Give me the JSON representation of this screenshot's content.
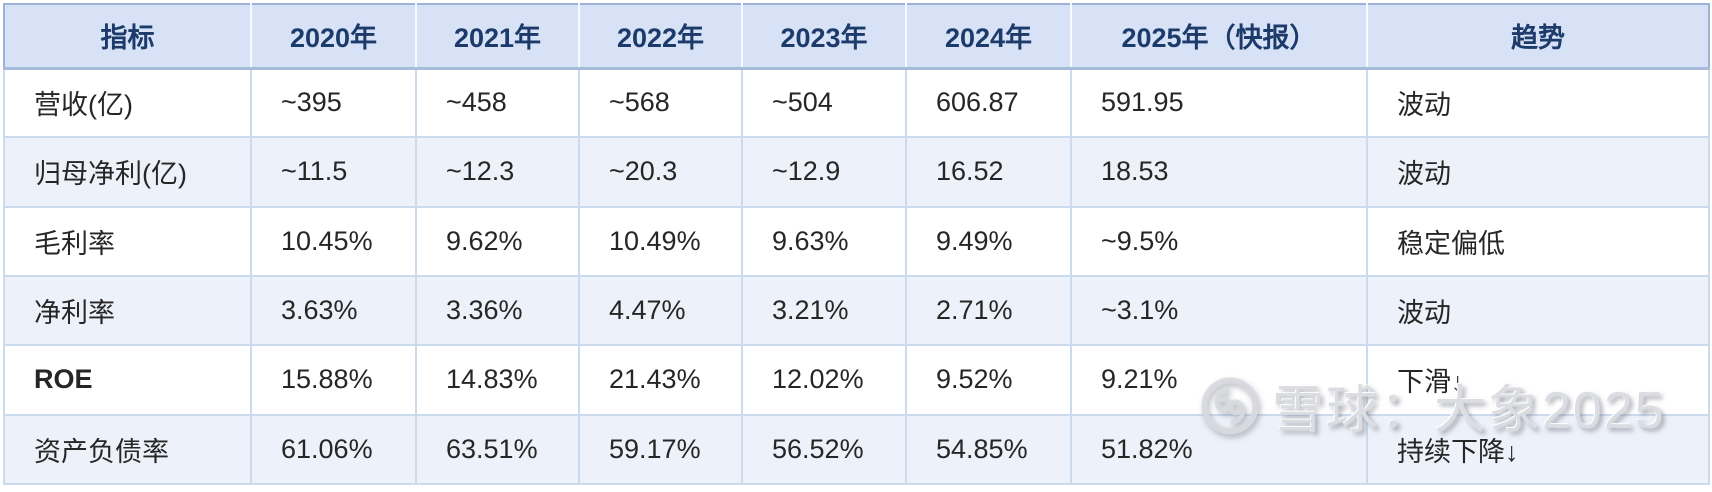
{
  "chart_data": {
    "type": "table",
    "title": "",
    "columns": [
      "指标",
      "2020年",
      "2021年",
      "2022年",
      "2023年",
      "2024年",
      "2025年（快报）",
      "趋势"
    ],
    "rows": [
      {
        "indicator": "营收(亿)",
        "values": [
          "~395",
          "~458",
          "~568",
          "~504",
          "606.87",
          "591.95"
        ],
        "trend": "波动"
      },
      {
        "indicator": "归母净利(亿)",
        "values": [
          "~11.5",
          "~12.3",
          "~20.3",
          "~12.9",
          "16.52",
          "18.53"
        ],
        "trend": "波动"
      },
      {
        "indicator": "毛利率",
        "values": [
          "10.45%",
          "9.62%",
          "10.49%",
          "9.63%",
          "9.49%",
          "~9.5%"
        ],
        "trend": "稳定偏低"
      },
      {
        "indicator": "净利率",
        "values": [
          "3.63%",
          "3.36%",
          "4.47%",
          "3.21%",
          "2.71%",
          "~3.1%"
        ],
        "trend": "波动"
      },
      {
        "indicator": "ROE",
        "bold": true,
        "values": [
          "15.88%",
          "14.83%",
          "21.43%",
          "12.02%",
          "9.52%",
          "9.21%"
        ],
        "trend": "下滑↓"
      },
      {
        "indicator": "资产负债率",
        "values": [
          "61.06%",
          "63.51%",
          "59.17%",
          "56.52%",
          "54.85%",
          "51.82%"
        ],
        "trend": "持续下降↓"
      }
    ]
  },
  "watermark": {
    "icon": "xueqiu-snowball-logo",
    "text": "雪球：大象2025"
  },
  "colors": {
    "header_bg": "#d8e2f6",
    "header_text": "#1c3a6a",
    "alt_row_bg": "#edf1f9",
    "row_bg": "#ffffff",
    "grid_border": "#ccdaee",
    "outer_border": "#9cb2d6",
    "body_text": "#262626",
    "watermark_gray": "#d8dae0"
  }
}
